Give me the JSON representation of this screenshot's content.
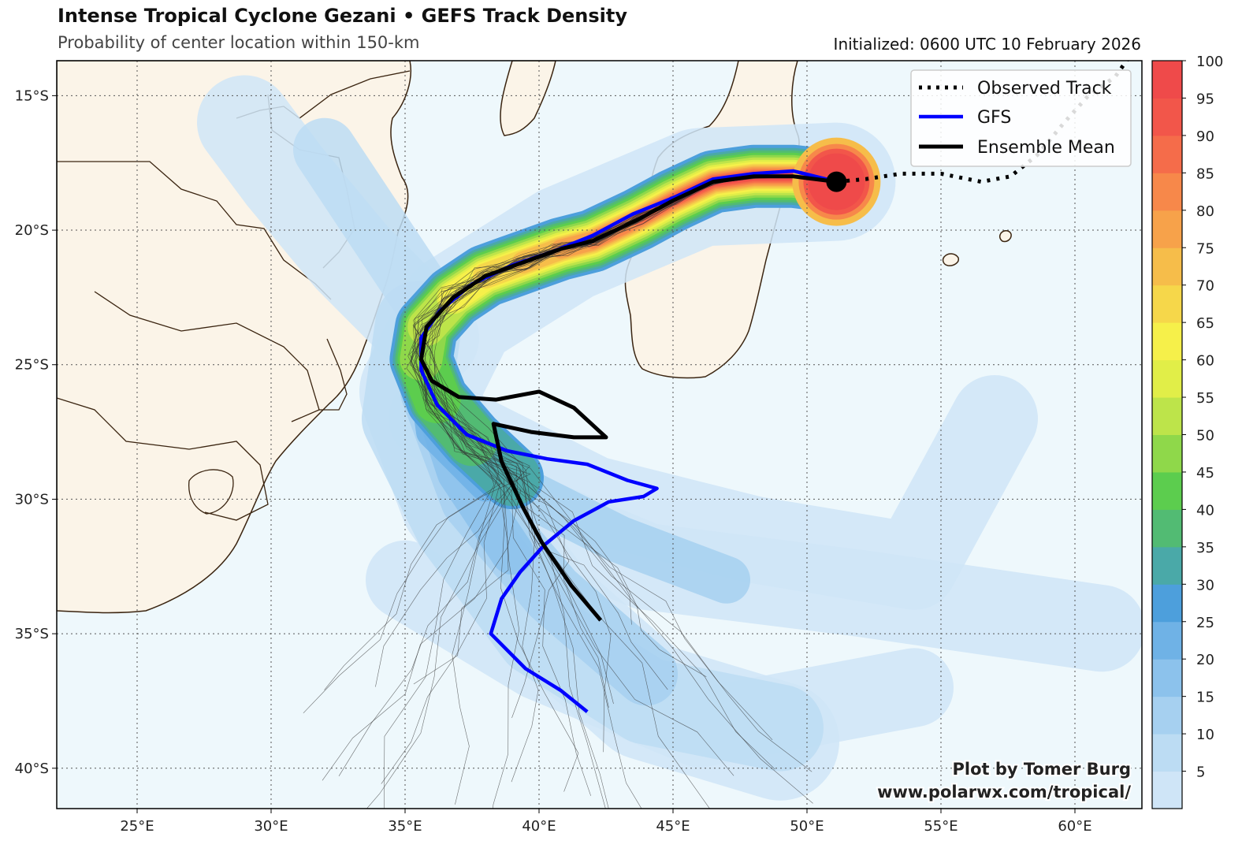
{
  "header": {
    "title": "Intense Tropical Cyclone Gezani • GEFS Track Density",
    "subtitle": "Probability of center location within 150-km",
    "initialized": "Initialized: 0600 UTC 10 February 2026"
  },
  "map": {
    "lon_range": [
      22,
      62.5
    ],
    "lat_range": [
      -41.5,
      -13.7
    ],
    "lon_ticks": [
      "25°E",
      "30°E",
      "35°E",
      "40°E",
      "45°E",
      "50°E",
      "55°E",
      "60°E"
    ],
    "lat_ticks": [
      "15°S",
      "20°S",
      "25°S",
      "30°S",
      "35°S",
      "40°S"
    ],
    "ocean_color": "#eef8fc",
    "land_color": "#fbf4e8",
    "coast_color": "#3a2410"
  },
  "legend": {
    "observed": "Observed Track",
    "gfs": "GFS",
    "mean": "Ensemble Mean"
  },
  "colorbar": {
    "labels": [
      "5",
      "10",
      "15",
      "20",
      "25",
      "30",
      "35",
      "40",
      "45",
      "50",
      "55",
      "60",
      "65",
      "70",
      "75",
      "80",
      "85",
      "90",
      "95",
      "100"
    ],
    "colors": [
      "#cfe5f7",
      "#bcdcf3",
      "#a6d0f0",
      "#8cc2ec",
      "#6fb2e6",
      "#4d9fdc",
      "#4aa9a8",
      "#52bb73",
      "#5ccd4e",
      "#8fd84a",
      "#bde44a",
      "#e1ee48",
      "#f6f04a",
      "#f6d74a",
      "#f6bd4a",
      "#f7a24a",
      "#f7884a",
      "#f56c4a",
      "#f2564a",
      "#ef4a4a"
    ]
  },
  "tracks": {
    "observed": [
      [
        62,
        -13.6
      ],
      [
        61.5,
        -14.3
      ],
      [
        60.5,
        -15
      ],
      [
        59.6,
        -16
      ],
      [
        58.6,
        -17.2
      ],
      [
        57.6,
        -18
      ],
      [
        56.5,
        -18.2
      ],
      [
        55,
        -17.9
      ],
      [
        53.5,
        -17.9
      ],
      [
        52.2,
        -18.1
      ],
      [
        51.1,
        -18.2
      ]
    ],
    "gfs": [
      [
        51.1,
        -18.2
      ],
      [
        49.5,
        -17.8
      ],
      [
        48,
        -17.9
      ],
      [
        46.5,
        -18.1
      ],
      [
        45,
        -18.8
      ],
      [
        43.5,
        -19.4
      ],
      [
        42,
        -20.2
      ],
      [
        40.5,
        -20.8
      ],
      [
        39,
        -21.3
      ],
      [
        37.5,
        -22
      ],
      [
        36.3,
        -23
      ],
      [
        35.6,
        -24
      ],
      [
        35.6,
        -25.2
      ],
      [
        36.2,
        -26.5
      ],
      [
        37.3,
        -27.6
      ],
      [
        38.8,
        -28.2
      ],
      [
        40.3,
        -28.5
      ],
      [
        41.8,
        -28.7
      ],
      [
        43.3,
        -29.3
      ],
      [
        44.4,
        -29.6
      ],
      [
        43.9,
        -29.9
      ],
      [
        42.6,
        -30.1
      ],
      [
        41.3,
        -30.8
      ],
      [
        40.2,
        -31.7
      ],
      [
        39.3,
        -32.7
      ],
      [
        38.6,
        -33.7
      ],
      [
        38.2,
        -35
      ],
      [
        39.5,
        -36.3
      ],
      [
        40.8,
        -37.1
      ],
      [
        41.8,
        -37.9
      ]
    ],
    "mean": [
      [
        51.1,
        -18.2
      ],
      [
        49.5,
        -18
      ],
      [
        48,
        -18
      ],
      [
        46.5,
        -18.2
      ],
      [
        45,
        -18.9
      ],
      [
        43.7,
        -19.6
      ],
      [
        42,
        -20.4
      ],
      [
        40.8,
        -20.7
      ],
      [
        39.4,
        -21.2
      ],
      [
        38,
        -21.7
      ],
      [
        36.8,
        -22.5
      ],
      [
        35.8,
        -23.6
      ],
      [
        35.6,
        -24.8
      ],
      [
        36,
        -25.6
      ],
      [
        37,
        -26.2
      ],
      [
        38.4,
        -26.3
      ],
      [
        40,
        -26
      ],
      [
        41.3,
        -26.6
      ],
      [
        42.5,
        -27.7
      ],
      [
        41.3,
        -27.7
      ],
      [
        39.7,
        -27.5
      ],
      [
        38.3,
        -27.2
      ],
      [
        38.6,
        -28.6
      ],
      [
        39.4,
        -30.3
      ],
      [
        40.1,
        -31.6
      ],
      [
        41.2,
        -33.2
      ],
      [
        42.3,
        -34.5
      ]
    ],
    "storm_position": [
      51.1,
      -18.2
    ]
  },
  "credit": {
    "line1": "Plot by Tomer Burg",
    "line2": "www.polarwx.com/tropical/"
  }
}
